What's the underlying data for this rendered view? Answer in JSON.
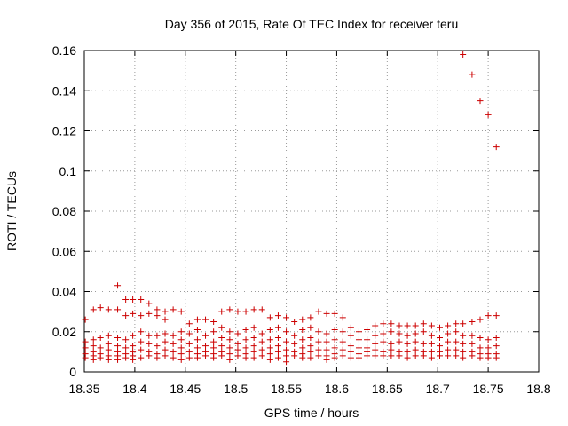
{
  "chart_data": {
    "type": "scatter",
    "title": "Day 356 of 2015, Rate Of TEC Index for receiver teru",
    "xlabel": "GPS time / hours",
    "ylabel": "ROTI / TECUs",
    "xlim": [
      18.35,
      18.8
    ],
    "ylim": [
      0,
      0.16
    ],
    "x_ticks": [
      "18.35",
      "18.4",
      "18.45",
      "18.5",
      "18.55",
      "18.6",
      "18.65",
      "18.7",
      "18.75",
      "18.8"
    ],
    "y_ticks": [
      "0",
      "0.02",
      "0.04",
      "0.06",
      "0.08",
      "0.1",
      "0.12",
      "0.14",
      "0.16"
    ],
    "grid": true,
    "marker": "+",
    "color": "#cc0000",
    "series": [
      {
        "name": "ROTI",
        "points": [
          [
            18.351,
            0.026
          ],
          [
            18.351,
            0.015
          ],
          [
            18.351,
            0.012
          ],
          [
            18.351,
            0.009
          ],
          [
            18.351,
            0.007
          ],
          [
            18.359,
            0.031
          ],
          [
            18.359,
            0.016
          ],
          [
            18.359,
            0.013
          ],
          [
            18.359,
            0.01
          ],
          [
            18.359,
            0.008
          ],
          [
            18.359,
            0.006
          ],
          [
            18.366,
            0.032
          ],
          [
            18.366,
            0.017
          ],
          [
            18.366,
            0.012
          ],
          [
            18.366,
            0.009
          ],
          [
            18.366,
            0.007
          ],
          [
            18.374,
            0.031
          ],
          [
            18.374,
            0.018
          ],
          [
            18.374,
            0.014
          ],
          [
            18.374,
            0.011
          ],
          [
            18.374,
            0.008
          ],
          [
            18.374,
            0.006
          ],
          [
            18.383,
            0.043
          ],
          [
            18.383,
            0.031
          ],
          [
            18.383,
            0.017
          ],
          [
            18.383,
            0.013
          ],
          [
            18.383,
            0.01
          ],
          [
            18.383,
            0.008
          ],
          [
            18.383,
            0.006
          ],
          [
            18.391,
            0.036
          ],
          [
            18.391,
            0.028
          ],
          [
            18.391,
            0.016
          ],
          [
            18.391,
            0.012
          ],
          [
            18.391,
            0.009
          ],
          [
            18.391,
            0.007
          ],
          [
            18.398,
            0.036
          ],
          [
            18.398,
            0.029
          ],
          [
            18.398,
            0.018
          ],
          [
            18.398,
            0.013
          ],
          [
            18.398,
            0.01
          ],
          [
            18.398,
            0.008
          ],
          [
            18.398,
            0.006
          ],
          [
            18.406,
            0.036
          ],
          [
            18.406,
            0.028
          ],
          [
            18.406,
            0.02
          ],
          [
            18.406,
            0.015
          ],
          [
            18.406,
            0.011
          ],
          [
            18.406,
            0.007
          ],
          [
            18.414,
            0.034
          ],
          [
            18.414,
            0.029
          ],
          [
            18.414,
            0.018
          ],
          [
            18.414,
            0.014
          ],
          [
            18.414,
            0.01
          ],
          [
            18.414,
            0.008
          ],
          [
            18.422,
            0.031
          ],
          [
            18.422,
            0.028
          ],
          [
            18.422,
            0.018
          ],
          [
            18.422,
            0.013
          ],
          [
            18.422,
            0.009
          ],
          [
            18.422,
            0.007
          ],
          [
            18.43,
            0.03
          ],
          [
            18.43,
            0.026
          ],
          [
            18.43,
            0.019
          ],
          [
            18.43,
            0.015
          ],
          [
            18.43,
            0.011
          ],
          [
            18.43,
            0.008
          ],
          [
            18.438,
            0.031
          ],
          [
            18.438,
            0.018
          ],
          [
            18.438,
            0.014
          ],
          [
            18.438,
            0.01
          ],
          [
            18.438,
            0.007
          ],
          [
            18.446,
            0.03
          ],
          [
            18.446,
            0.02
          ],
          [
            18.446,
            0.016
          ],
          [
            18.446,
            0.012
          ],
          [
            18.446,
            0.009
          ],
          [
            18.446,
            0.006
          ],
          [
            18.454,
            0.024
          ],
          [
            18.454,
            0.019
          ],
          [
            18.454,
            0.014
          ],
          [
            18.454,
            0.01
          ],
          [
            18.454,
            0.007
          ],
          [
            18.462,
            0.026
          ],
          [
            18.462,
            0.021
          ],
          [
            18.462,
            0.016
          ],
          [
            18.462,
            0.012
          ],
          [
            18.462,
            0.009
          ],
          [
            18.462,
            0.007
          ],
          [
            18.47,
            0.026
          ],
          [
            18.47,
            0.018
          ],
          [
            18.47,
            0.013
          ],
          [
            18.47,
            0.01
          ],
          [
            18.47,
            0.008
          ],
          [
            18.478,
            0.025
          ],
          [
            18.478,
            0.02
          ],
          [
            18.478,
            0.015
          ],
          [
            18.478,
            0.012
          ],
          [
            18.478,
            0.009
          ],
          [
            18.478,
            0.007
          ],
          [
            18.486,
            0.03
          ],
          [
            18.486,
            0.022
          ],
          [
            18.486,
            0.017
          ],
          [
            18.486,
            0.013
          ],
          [
            18.486,
            0.01
          ],
          [
            18.486,
            0.008
          ],
          [
            18.494,
            0.031
          ],
          [
            18.494,
            0.02
          ],
          [
            18.494,
            0.016
          ],
          [
            18.494,
            0.012
          ],
          [
            18.494,
            0.009
          ],
          [
            18.494,
            0.006
          ],
          [
            18.502,
            0.03
          ],
          [
            18.502,
            0.019
          ],
          [
            18.502,
            0.014
          ],
          [
            18.502,
            0.011
          ],
          [
            18.502,
            0.008
          ],
          [
            18.51,
            0.03
          ],
          [
            18.51,
            0.021
          ],
          [
            18.51,
            0.016
          ],
          [
            18.51,
            0.012
          ],
          [
            18.51,
            0.009
          ],
          [
            18.51,
            0.007
          ],
          [
            18.518,
            0.031
          ],
          [
            18.518,
            0.022
          ],
          [
            18.518,
            0.017
          ],
          [
            18.518,
            0.013
          ],
          [
            18.518,
            0.01
          ],
          [
            18.518,
            0.007
          ],
          [
            18.526,
            0.031
          ],
          [
            18.526,
            0.019
          ],
          [
            18.526,
            0.015
          ],
          [
            18.526,
            0.011
          ],
          [
            18.526,
            0.008
          ],
          [
            18.534,
            0.027
          ],
          [
            18.534,
            0.021
          ],
          [
            18.534,
            0.016
          ],
          [
            18.534,
            0.012
          ],
          [
            18.534,
            0.009
          ],
          [
            18.534,
            0.006
          ],
          [
            18.542,
            0.028
          ],
          [
            18.542,
            0.022
          ],
          [
            18.542,
            0.017
          ],
          [
            18.542,
            0.013
          ],
          [
            18.542,
            0.01
          ],
          [
            18.542,
            0.007
          ],
          [
            18.55,
            0.027
          ],
          [
            18.55,
            0.02
          ],
          [
            18.55,
            0.015
          ],
          [
            18.55,
            0.011
          ],
          [
            18.55,
            0.008
          ],
          [
            18.55,
            0.005
          ],
          [
            18.558,
            0.025
          ],
          [
            18.558,
            0.018
          ],
          [
            18.558,
            0.014
          ],
          [
            18.558,
            0.01
          ],
          [
            18.558,
            0.008
          ],
          [
            18.566,
            0.026
          ],
          [
            18.566,
            0.021
          ],
          [
            18.566,
            0.016
          ],
          [
            18.566,
            0.012
          ],
          [
            18.566,
            0.009
          ],
          [
            18.566,
            0.007
          ],
          [
            18.574,
            0.027
          ],
          [
            18.574,
            0.022
          ],
          [
            18.574,
            0.017
          ],
          [
            18.574,
            0.013
          ],
          [
            18.574,
            0.01
          ],
          [
            18.574,
            0.007
          ],
          [
            18.582,
            0.03
          ],
          [
            18.582,
            0.02
          ],
          [
            18.582,
            0.015
          ],
          [
            18.582,
            0.011
          ],
          [
            18.582,
            0.008
          ],
          [
            18.59,
            0.029
          ],
          [
            18.59,
            0.019
          ],
          [
            18.59,
            0.015
          ],
          [
            18.59,
            0.011
          ],
          [
            18.59,
            0.008
          ],
          [
            18.59,
            0.006
          ],
          [
            18.598,
            0.029
          ],
          [
            18.598,
            0.021
          ],
          [
            18.598,
            0.016
          ],
          [
            18.598,
            0.012
          ],
          [
            18.598,
            0.009
          ],
          [
            18.598,
            0.007
          ],
          [
            18.606,
            0.027
          ],
          [
            18.606,
            0.02
          ],
          [
            18.606,
            0.015
          ],
          [
            18.606,
            0.011
          ],
          [
            18.606,
            0.008
          ],
          [
            18.614,
            0.022
          ],
          [
            18.614,
            0.018
          ],
          [
            18.614,
            0.013
          ],
          [
            18.614,
            0.01
          ],
          [
            18.614,
            0.007
          ],
          [
            18.622,
            0.02
          ],
          [
            18.622,
            0.016
          ],
          [
            18.622,
            0.012
          ],
          [
            18.622,
            0.009
          ],
          [
            18.622,
            0.007
          ],
          [
            18.63,
            0.021
          ],
          [
            18.63,
            0.016
          ],
          [
            18.63,
            0.012
          ],
          [
            18.63,
            0.01
          ],
          [
            18.63,
            0.008
          ],
          [
            18.638,
            0.023
          ],
          [
            18.638,
            0.018
          ],
          [
            18.638,
            0.014
          ],
          [
            18.638,
            0.011
          ],
          [
            18.638,
            0.008
          ],
          [
            18.646,
            0.024
          ],
          [
            18.646,
            0.019
          ],
          [
            18.646,
            0.015
          ],
          [
            18.646,
            0.01
          ],
          [
            18.646,
            0.008
          ],
          [
            18.654,
            0.024
          ],
          [
            18.654,
            0.02
          ],
          [
            18.654,
            0.014
          ],
          [
            18.654,
            0.011
          ],
          [
            18.654,
            0.008
          ],
          [
            18.662,
            0.023
          ],
          [
            18.662,
            0.019
          ],
          [
            18.662,
            0.015
          ],
          [
            18.662,
            0.01
          ],
          [
            18.662,
            0.008
          ],
          [
            18.67,
            0.023
          ],
          [
            18.67,
            0.018
          ],
          [
            18.67,
            0.014
          ],
          [
            18.67,
            0.01
          ],
          [
            18.67,
            0.007
          ],
          [
            18.678,
            0.023
          ],
          [
            18.678,
            0.019
          ],
          [
            18.678,
            0.015
          ],
          [
            18.678,
            0.011
          ],
          [
            18.678,
            0.008
          ],
          [
            18.686,
            0.024
          ],
          [
            18.686,
            0.02
          ],
          [
            18.686,
            0.014
          ],
          [
            18.686,
            0.01
          ],
          [
            18.686,
            0.008
          ],
          [
            18.694,
            0.023
          ],
          [
            18.694,
            0.018
          ],
          [
            18.694,
            0.014
          ],
          [
            18.694,
            0.01
          ],
          [
            18.694,
            0.007
          ],
          [
            18.702,
            0.022
          ],
          [
            18.702,
            0.017
          ],
          [
            18.702,
            0.013
          ],
          [
            18.702,
            0.01
          ],
          [
            18.702,
            0.008
          ],
          [
            18.71,
            0.023
          ],
          [
            18.71,
            0.019
          ],
          [
            18.71,
            0.015
          ],
          [
            18.71,
            0.011
          ],
          [
            18.71,
            0.008
          ],
          [
            18.718,
            0.024
          ],
          [
            18.718,
            0.02
          ],
          [
            18.718,
            0.015
          ],
          [
            18.718,
            0.011
          ],
          [
            18.718,
            0.008
          ],
          [
            18.725,
            0.158
          ],
          [
            18.725,
            0.024
          ],
          [
            18.725,
            0.018
          ],
          [
            18.725,
            0.014
          ],
          [
            18.725,
            0.01
          ],
          [
            18.725,
            0.007
          ],
          [
            18.734,
            0.148
          ],
          [
            18.734,
            0.025
          ],
          [
            18.734,
            0.018
          ],
          [
            18.734,
            0.014
          ],
          [
            18.734,
            0.01
          ],
          [
            18.734,
            0.008
          ],
          [
            18.742,
            0.135
          ],
          [
            18.742,
            0.026
          ],
          [
            18.742,
            0.017
          ],
          [
            18.742,
            0.012
          ],
          [
            18.742,
            0.009
          ],
          [
            18.742,
            0.007
          ],
          [
            18.75,
            0.128
          ],
          [
            18.75,
            0.028
          ],
          [
            18.75,
            0.016
          ],
          [
            18.75,
            0.012
          ],
          [
            18.75,
            0.009
          ],
          [
            18.75,
            0.007
          ],
          [
            18.758,
            0.112
          ],
          [
            18.758,
            0.028
          ],
          [
            18.758,
            0.017
          ],
          [
            18.758,
            0.013
          ],
          [
            18.758,
            0.009
          ],
          [
            18.758,
            0.007
          ]
        ]
      }
    ]
  }
}
